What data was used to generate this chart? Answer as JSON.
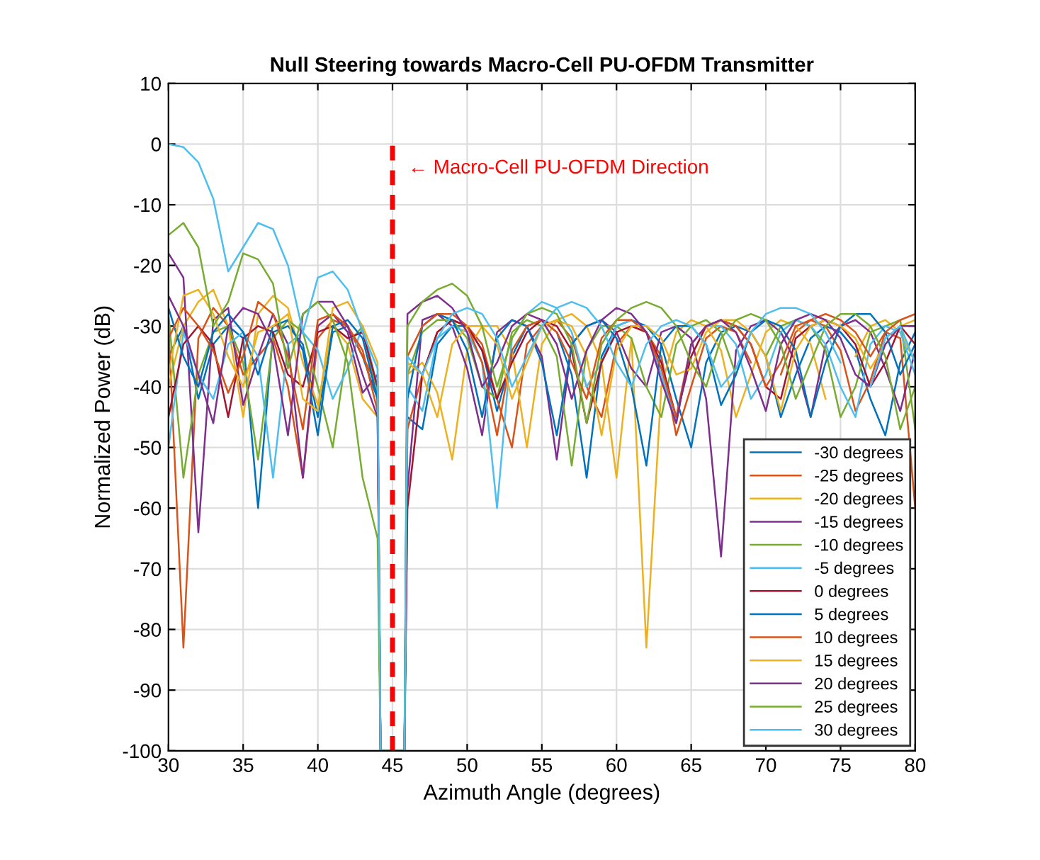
{
  "chart_data": {
    "type": "line",
    "title": "Null Steering towards Macro-Cell PU-OFDM Transmitter",
    "xlabel": "Azimuth Angle (degrees)",
    "ylabel": "Normalized Power (dB)",
    "x": [
      30,
      31,
      32,
      33,
      34,
      35,
      36,
      37,
      38,
      39,
      40,
      41,
      42,
      43,
      44,
      44.2,
      45.8,
      46,
      47,
      48,
      49,
      50,
      51,
      52,
      53,
      54,
      55,
      56,
      57,
      58,
      59,
      60,
      61,
      62,
      63,
      64,
      65,
      66,
      67,
      68,
      69,
      70,
      71,
      72,
      73,
      74,
      75,
      76,
      77,
      78,
      79,
      80
    ],
    "xlim": [
      30,
      80
    ],
    "xticks": [
      30,
      35,
      40,
      45,
      50,
      55,
      60,
      65,
      70,
      75,
      80
    ],
    "ylim": [
      -100,
      10
    ],
    "yticks": [
      -100,
      -90,
      -80,
      -70,
      -60,
      -50,
      -40,
      -30,
      -20,
      -10,
      0,
      10
    ],
    "grid": true,
    "legend": "bottom right",
    "annotations": [
      {
        "text": "← Macro-Cell PU-OFDM Direction",
        "x": 45,
        "y": -4
      }
    ],
    "series": [
      {
        "name": "-30 degrees",
        "color": "#0072bd",
        "values": [
          -35,
          -30,
          -42,
          -33,
          -30,
          -32,
          -60,
          -31,
          -30,
          -33,
          -45,
          -31,
          -30,
          -35,
          -42,
          -100,
          -100,
          -45,
          -47,
          -33,
          -30,
          -30,
          -34,
          -44,
          -35,
          -30,
          -29,
          -31,
          -38,
          -55,
          -35,
          -30,
          -29,
          -30,
          -33,
          -42,
          -50,
          -36,
          -31,
          -30,
          -31,
          -35,
          -45,
          -38,
          -32,
          -30,
          -31,
          -34,
          -42,
          -48,
          -36,
          -31
        ]
      },
      {
        "name": "-25 degrees",
        "color": "#d95319",
        "values": [
          -30,
          -83,
          -32,
          -27,
          -30,
          -38,
          -35,
          -32,
          -40,
          -55,
          -32,
          -29,
          -30,
          -35,
          -40,
          -100,
          -100,
          -47,
          -38,
          -31,
          -29,
          -30,
          -33,
          -42,
          -50,
          -33,
          -30,
          -29,
          -32,
          -40,
          -45,
          -33,
          -30,
          -31,
          -35,
          -48,
          -40,
          -32,
          -30,
          -31,
          -36,
          null,
          -38,
          -31,
          -29,
          -30,
          -34,
          -44,
          -39,
          -31,
          -32,
          -60
        ]
      },
      {
        "name": "-20 degrees",
        "color": "#edb120",
        "values": [
          -40,
          -30,
          -26,
          -24,
          -30,
          -45,
          -28,
          -25,
          -27,
          -36,
          -43,
          -30,
          -33,
          -42,
          -45,
          -100,
          -100,
          -38,
          -36,
          -41,
          -52,
          -34,
          -30,
          -30,
          -34,
          -50,
          -33,
          -29,
          -28,
          -30,
          -36,
          -55,
          -32,
          -83,
          -40,
          -31,
          -29,
          -30,
          -34,
          -45,
          -38,
          -31,
          -29,
          -30,
          -33,
          -42,
          null,
          -35,
          -30,
          -29,
          -31,
          -36
        ]
      },
      {
        "name": "-15 degrees",
        "color": "#7e2f8e",
        "values": [
          -18,
          -22,
          -64,
          -29,
          -27,
          -43,
          -35,
          -28,
          -33,
          -55,
          -30,
          -28,
          -31,
          -41,
          -38,
          -100,
          -100,
          -57,
          -29,
          -28,
          -30,
          -37,
          -48,
          -31,
          -29,
          -30,
          -35,
          -52,
          -33,
          -30,
          -29,
          -31,
          -37,
          -40,
          -31,
          -30,
          -32,
          -42,
          -68,
          -34,
          -30,
          -29,
          -31,
          -36,
          -45,
          -33,
          -30,
          -29,
          -31,
          -37,
          -44,
          -34
        ]
      },
      {
        "name": "-10 degrees",
        "color": "#77ac30",
        "values": [
          -28,
          -55,
          -38,
          -31,
          -30,
          -36,
          -52,
          -32,
          -29,
          -31,
          -40,
          -50,
          -33,
          -30,
          -42,
          -100,
          -100,
          -38,
          -31,
          -29,
          -29,
          -32,
          -40,
          -42,
          -31,
          -29,
          -30,
          -35,
          -53,
          -34,
          -30,
          -30,
          -32,
          -40,
          -45,
          -33,
          -30,
          -29,
          -31,
          -38,
          null,
          -35,
          -30,
          -29,
          -30,
          -34,
          -45,
          -40,
          -31,
          -30,
          -29,
          -47
        ]
      },
      {
        "name": "-5 degrees",
        "color": "#4dbeee",
        "values": [
          -50,
          -31,
          -38,
          -42,
          -33,
          -31,
          -35,
          -55,
          -33,
          -31,
          -34,
          -42,
          -37,
          -30,
          -40,
          -100,
          -100,
          -40,
          -44,
          -32,
          -30,
          -31,
          -36,
          -60,
          -32,
          -28,
          -26,
          -27,
          -31,
          -40,
          -36,
          -30,
          -29,
          -31,
          -38,
          -46,
          -33,
          -30,
          -30,
          -33,
          -42,
          -38,
          -31,
          -29,
          -30,
          -33,
          -40,
          -45,
          -33,
          -30,
          -31,
          -38
        ]
      },
      {
        "name": "0 degrees",
        "color": "#a2142f",
        "values": [
          -45,
          -33,
          -30,
          -33,
          -45,
          -32,
          -30,
          -31,
          -38,
          -40,
          -31,
          -30,
          -32,
          -31,
          -40,
          -100,
          -100,
          -60,
          -38,
          -31,
          -29,
          -30,
          -34,
          -42,
          -36,
          -31,
          -29,
          -30,
          -34,
          -46,
          -36,
          -31,
          -30,
          -31,
          -36,
          -45,
          -35,
          -30,
          -29,
          -30,
          -33,
          -40,
          -42,
          -32,
          -30,
          -29,
          -30,
          -33,
          -40,
          -36,
          -30,
          -33
        ]
      },
      {
        "name": "5 degrees",
        "color": "#0072bd",
        "values": [
          -27,
          -35,
          -40,
          -31,
          -28,
          -31,
          -38,
          -30,
          -29,
          -34,
          -48,
          -30,
          -29,
          -32,
          -42,
          -100,
          -100,
          -42,
          -30,
          -28,
          -29,
          -34,
          -45,
          -32,
          -29,
          -30,
          -36,
          -48,
          -33,
          -30,
          -29,
          -32,
          -40,
          -53,
          -33,
          -30,
          -30,
          -33,
          -43,
          -38,
          -31,
          -29,
          -30,
          -34,
          -45,
          -36,
          -30,
          -28,
          -28,
          -31,
          -38,
          -33
        ]
      },
      {
        "name": "10 degrees",
        "color": "#d95319",
        "values": [
          -32,
          -27,
          -30,
          -34,
          -41,
          -35,
          -26,
          -28,
          -35,
          -47,
          -29,
          -28,
          -30,
          -34,
          -44,
          -100,
          -100,
          -35,
          -30,
          -28,
          -28,
          -30,
          -36,
          -48,
          -34,
          -30,
          -29,
          -31,
          -36,
          -42,
          -32,
          -29,
          -29,
          -31,
          -37,
          -45,
          -33,
          -30,
          -29,
          -30,
          -33,
          -40,
          -36,
          -30,
          -29,
          -28,
          -29,
          -31,
          -35,
          -31,
          -29,
          -28
        ]
      },
      {
        "name": "15 degrees",
        "color": "#edb120",
        "values": [
          -38,
          -25,
          -24,
          -28,
          -35,
          -40,
          -31,
          -30,
          -28,
          -42,
          -44,
          -27,
          -26,
          -30,
          -36,
          -100,
          -100,
          -36,
          -38,
          -45,
          -33,
          -30,
          -30,
          -33,
          -42,
          -36,
          -30,
          -29,
          -30,
          -35,
          -48,
          -34,
          -30,
          -30,
          -32,
          -38,
          -37,
          -31,
          -29,
          -29,
          -31,
          -35,
          -44,
          -34,
          -30,
          -29,
          -30,
          -32,
          -37,
          -33,
          -30,
          -29
        ]
      },
      {
        "name": "20 degrees",
        "color": "#7e2f8e",
        "values": [
          -25,
          -30,
          -38,
          -46,
          -30,
          -27,
          -28,
          -33,
          -48,
          -28,
          -26,
          -26,
          -30,
          -38,
          -45,
          -100,
          -100,
          -28,
          -26,
          -25,
          -27,
          -31,
          -40,
          -36,
          -30,
          -28,
          -29,
          -33,
          -42,
          -34,
          -29,
          -27,
          -28,
          -31,
          -39,
          -46,
          -33,
          -30,
          -29,
          -31,
          -37,
          -44,
          -33,
          -29,
          -28,
          -29,
          -32,
          -38,
          -40,
          -33,
          -30,
          -30
        ]
      },
      {
        "name": "25 degrees",
        "color": "#77ac30",
        "values": [
          -15,
          -13,
          -17,
          -30,
          -26,
          -18,
          -19,
          -23,
          -37,
          -28,
          -26,
          -29,
          -36,
          -55,
          -65,
          -100,
          -100,
          -30,
          -26,
          -24,
          -23,
          -25,
          -30,
          -40,
          -32,
          -28,
          -27,
          -28,
          -33,
          -46,
          -33,
          -29,
          -27,
          -26,
          -27,
          -30,
          -36,
          -40,
          -32,
          -29,
          -28,
          -29,
          -33,
          -42,
          -36,
          -30,
          -28,
          -28,
          -30,
          -35,
          -47,
          -40
        ]
      },
      {
        "name": "30 degrees",
        "color": "#4dbeee",
        "values": [
          0,
          -0.5,
          -3,
          -9,
          -21,
          -17,
          -13,
          -14,
          -20,
          -31,
          -22,
          -21,
          -24,
          -31,
          -37,
          -100,
          -100,
          -35,
          -38,
          -32,
          -28,
          -27,
          -28,
          -32,
          -40,
          -35,
          -30,
          -27,
          -26,
          -27,
          -30,
          -36,
          -40,
          -33,
          -30,
          -29,
          -30,
          -33,
          -40,
          -37,
          -31,
          -28,
          -27,
          -27,
          -28,
          -31,
          -36,
          null,
          -40,
          -32,
          -30,
          -36
        ]
      },
      {
        "color": "#ff0000",
        "line_style": "dashed",
        "x": [
          45,
          45
        ],
        "values": [
          -100,
          0
        ]
      }
    ]
  }
}
